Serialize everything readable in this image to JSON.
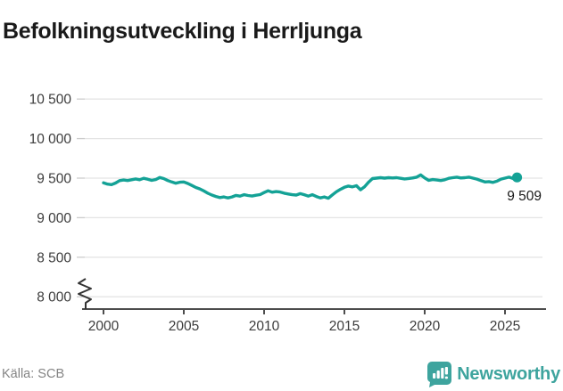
{
  "header": {
    "title": "Befolkningsutveckling i Herrljunga"
  },
  "footer": {
    "source": "Källa: SCB",
    "brand": "Newsworthy"
  },
  "colors": {
    "line": "#14a296",
    "brand": "#3ea49e",
    "grid": "#e4e4e4",
    "tick": "#cccccc",
    "axis_line": "#4d4d4d",
    "axis_text": "#3c3c3c",
    "end_label_text": "#1a1a1a"
  },
  "chart_data": {
    "type": "line",
    "title": "Befolkningsutveckling i Herrljunga",
    "xlabel": "",
    "ylabel": "",
    "x_ticks": [
      2000,
      2005,
      2010,
      2015,
      2020,
      2025
    ],
    "x_tick_labels": [
      "2000",
      "2005",
      "2010",
      "2015",
      "2020",
      "2025"
    ],
    "y_ticks": [
      8000,
      8500,
      9000,
      9500,
      10000,
      10500
    ],
    "y_tick_labels": [
      "8 000",
      "8 500",
      "9 000",
      "9 500",
      "10 000",
      "10 500"
    ],
    "ylim": [
      8000,
      10600
    ],
    "xlim": [
      1999,
      2026.3
    ],
    "axis_break_below_y": 8000,
    "grid": "horizontal-only",
    "legend": "none",
    "end_label": "9 509",
    "end_value": 9509,
    "source": "SCB",
    "series": [
      {
        "name": "Befolkning i Herrljunga",
        "color": "#14a296",
        "points": [
          [
            2000.0,
            9440
          ],
          [
            2000.25,
            9424
          ],
          [
            2000.5,
            9418
          ],
          [
            2000.75,
            9438
          ],
          [
            2001.0,
            9468
          ],
          [
            2001.25,
            9476
          ],
          [
            2001.5,
            9470
          ],
          [
            2001.75,
            9480
          ],
          [
            2002.0,
            9490
          ],
          [
            2002.25,
            9480
          ],
          [
            2002.5,
            9498
          ],
          [
            2002.75,
            9486
          ],
          [
            2003.0,
            9472
          ],
          [
            2003.25,
            9482
          ],
          [
            2003.5,
            9508
          ],
          [
            2003.75,
            9494
          ],
          [
            2004.0,
            9470
          ],
          [
            2004.25,
            9452
          ],
          [
            2004.5,
            9436
          ],
          [
            2004.75,
            9448
          ],
          [
            2005.0,
            9452
          ],
          [
            2005.25,
            9432
          ],
          [
            2005.5,
            9408
          ],
          [
            2005.75,
            9382
          ],
          [
            2006.0,
            9364
          ],
          [
            2006.25,
            9338
          ],
          [
            2006.5,
            9308
          ],
          [
            2006.75,
            9286
          ],
          [
            2007.0,
            9268
          ],
          [
            2007.25,
            9254
          ],
          [
            2007.5,
            9262
          ],
          [
            2007.75,
            9250
          ],
          [
            2008.0,
            9262
          ],
          [
            2008.25,
            9282
          ],
          [
            2008.5,
            9272
          ],
          [
            2008.75,
            9290
          ],
          [
            2009.0,
            9280
          ],
          [
            2009.25,
            9274
          ],
          [
            2009.5,
            9284
          ],
          [
            2009.75,
            9292
          ],
          [
            2010.0,
            9318
          ],
          [
            2010.25,
            9340
          ],
          [
            2010.5,
            9322
          ],
          [
            2010.75,
            9330
          ],
          [
            2011.0,
            9324
          ],
          [
            2011.25,
            9310
          ],
          [
            2011.5,
            9300
          ],
          [
            2011.75,
            9290
          ],
          [
            2012.0,
            9286
          ],
          [
            2012.25,
            9304
          ],
          [
            2012.5,
            9290
          ],
          [
            2012.75,
            9272
          ],
          [
            2013.0,
            9290
          ],
          [
            2013.25,
            9268
          ],
          [
            2013.5,
            9250
          ],
          [
            2013.75,
            9262
          ],
          [
            2014.0,
            9246
          ],
          [
            2014.25,
            9288
          ],
          [
            2014.5,
            9328
          ],
          [
            2014.75,
            9358
          ],
          [
            2015.0,
            9384
          ],
          [
            2015.25,
            9400
          ],
          [
            2015.5,
            9390
          ],
          [
            2015.75,
            9404
          ],
          [
            2016.0,
            9352
          ],
          [
            2016.25,
            9390
          ],
          [
            2016.5,
            9448
          ],
          [
            2016.75,
            9494
          ],
          [
            2017.0,
            9500
          ],
          [
            2017.25,
            9506
          ],
          [
            2017.5,
            9500
          ],
          [
            2017.75,
            9506
          ],
          [
            2018.0,
            9502
          ],
          [
            2018.25,
            9506
          ],
          [
            2018.5,
            9498
          ],
          [
            2018.75,
            9490
          ],
          [
            2019.0,
            9496
          ],
          [
            2019.25,
            9502
          ],
          [
            2019.5,
            9512
          ],
          [
            2019.75,
            9540
          ],
          [
            2020.0,
            9502
          ],
          [
            2020.25,
            9472
          ],
          [
            2020.5,
            9482
          ],
          [
            2020.75,
            9476
          ],
          [
            2021.0,
            9470
          ],
          [
            2021.25,
            9480
          ],
          [
            2021.5,
            9498
          ],
          [
            2021.75,
            9506
          ],
          [
            2022.0,
            9512
          ],
          [
            2022.25,
            9502
          ],
          [
            2022.5,
            9506
          ],
          [
            2022.75,
            9512
          ],
          [
            2023.0,
            9500
          ],
          [
            2023.25,
            9488
          ],
          [
            2023.5,
            9468
          ],
          [
            2023.75,
            9452
          ],
          [
            2024.0,
            9456
          ],
          [
            2024.25,
            9446
          ],
          [
            2024.5,
            9462
          ],
          [
            2024.75,
            9488
          ],
          [
            2025.0,
            9500
          ],
          [
            2025.25,
            9512
          ],
          [
            2025.5,
            9496
          ],
          [
            2025.75,
            9509
          ]
        ]
      }
    ]
  }
}
